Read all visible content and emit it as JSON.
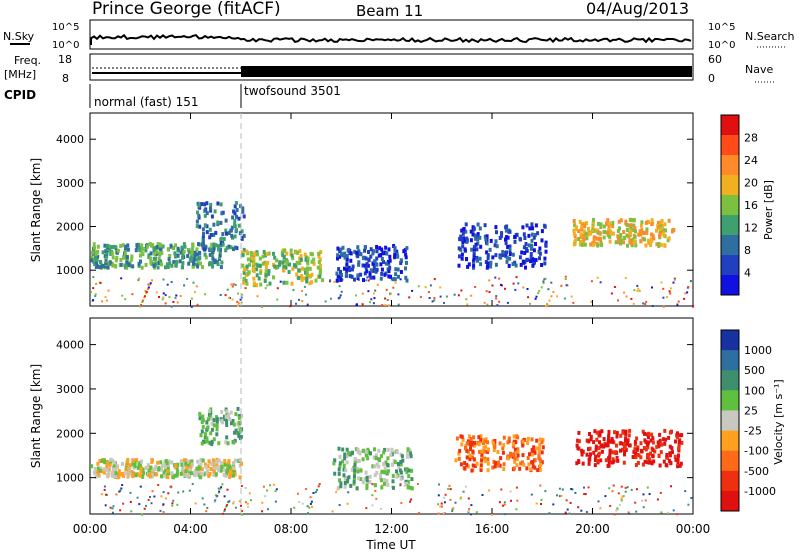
{
  "header": {
    "station": "Prince George (fitACF)",
    "beam": "Beam 11",
    "date": "04/Aug/2013"
  },
  "top_panels": {
    "nsky_label": "N.Sky",
    "nsearch_label": "N.Search",
    "freq_label_1": "Freq.",
    "freq_label_2": "[MHz]",
    "nave_label": "Nave",
    "cpid_label": "CPID",
    "nsky_ticks": [
      "10^5",
      "10^0"
    ],
    "nsearch_ticks": [
      "10^5",
      "10^0"
    ],
    "freq_ticks": [
      "18",
      "8"
    ],
    "nave_ticks": [
      "60",
      "0"
    ],
    "cpid_segments": [
      {
        "label": "normal (fast) 151",
        "start_hour": 0,
        "end_hour": 6
      },
      {
        "label": "twofsound 3501",
        "start_hour": 6,
        "end_hour": 24
      }
    ]
  },
  "colorbars": {
    "power": {
      "title": "Power [dB]",
      "ticks": [
        "28",
        "24",
        "20",
        "16",
        "12",
        "8",
        "4"
      ],
      "colors": [
        "#e01010",
        "#ff4a1a",
        "#ff8a2a",
        "#f0b020",
        "#7cc040",
        "#3f9f6f",
        "#2f6fa0",
        "#2040c0",
        "#1010e0"
      ]
    },
    "velocity": {
      "title": "Velocity [m s⁻¹]",
      "ticks": [
        "1000",
        "500",
        "100",
        "25",
        "-25",
        "-100",
        "-500",
        "-1000"
      ],
      "colors": [
        "#1830a0",
        "#2f6fa0",
        "#3f8f6f",
        "#5fbf3f",
        "#c8c8c0",
        "#ffa020",
        "#ff6a18",
        "#ee3010",
        "#e01010"
      ]
    }
  },
  "chart_data": [
    {
      "type": "heatmap",
      "name": "power",
      "ylabel": "Slant Range [km]",
      "y_ticks": [
        "4000",
        "3000",
        "2000",
        "1000"
      ],
      "ylim": [
        180,
        4600
      ],
      "x_ticks": [
        "00:00",
        "04:00",
        "08:00",
        "12:00",
        "16:00",
        "20:00",
        "00:00"
      ],
      "xlim_hours": [
        0,
        24
      ],
      "colorbar_units": "dB",
      "regions": [
        {
          "t0": 0,
          "t1": 5.2,
          "r0": 1100,
          "r1": 1650,
          "level": 5
        },
        {
          "t0": 4.2,
          "t1": 6.1,
          "r0": 1500,
          "r1": 2600,
          "level": 6
        },
        {
          "t0": 6.0,
          "t1": 9.2,
          "r0": 700,
          "r1": 1500,
          "level": 4
        },
        {
          "t0": 9.7,
          "t1": 12.6,
          "r0": 800,
          "r1": 1600,
          "level": 7
        },
        {
          "t0": 14.6,
          "t1": 18.1,
          "r0": 1100,
          "r1": 2100,
          "level": 7
        },
        {
          "t0": 19.2,
          "t1": 23.2,
          "r0": 1600,
          "r1": 2200,
          "level": 3
        }
      ]
    },
    {
      "type": "heatmap",
      "name": "velocity",
      "ylabel": "Slant Range [km]",
      "y_ticks": [
        "4000",
        "3000",
        "2000",
        "1000"
      ],
      "ylim": [
        180,
        4600
      ],
      "x_ticks": [
        "00:00",
        "04:00",
        "08:00",
        "12:00",
        "16:00",
        "20:00",
        "00:00"
      ],
      "xlim_hours": [
        0,
        24
      ],
      "xlabel": "Time UT",
      "colorbar_units": "m s⁻¹",
      "regions": [
        {
          "t0": 0,
          "t1": 6.0,
          "r0": 1050,
          "r1": 1450,
          "level": 4
        },
        {
          "t0": 4.3,
          "t1": 6.0,
          "r0": 1800,
          "r1": 2600,
          "level": 3
        },
        {
          "t0": 9.6,
          "t1": 12.8,
          "r0": 800,
          "r1": 1700,
          "level": 3
        },
        {
          "t0": 14.5,
          "t1": 18.0,
          "r0": 1200,
          "r1": 2000,
          "level": 6
        },
        {
          "t0": 19.3,
          "t1": 23.5,
          "r0": 1300,
          "r1": 2100,
          "level": 8
        }
      ]
    }
  ]
}
